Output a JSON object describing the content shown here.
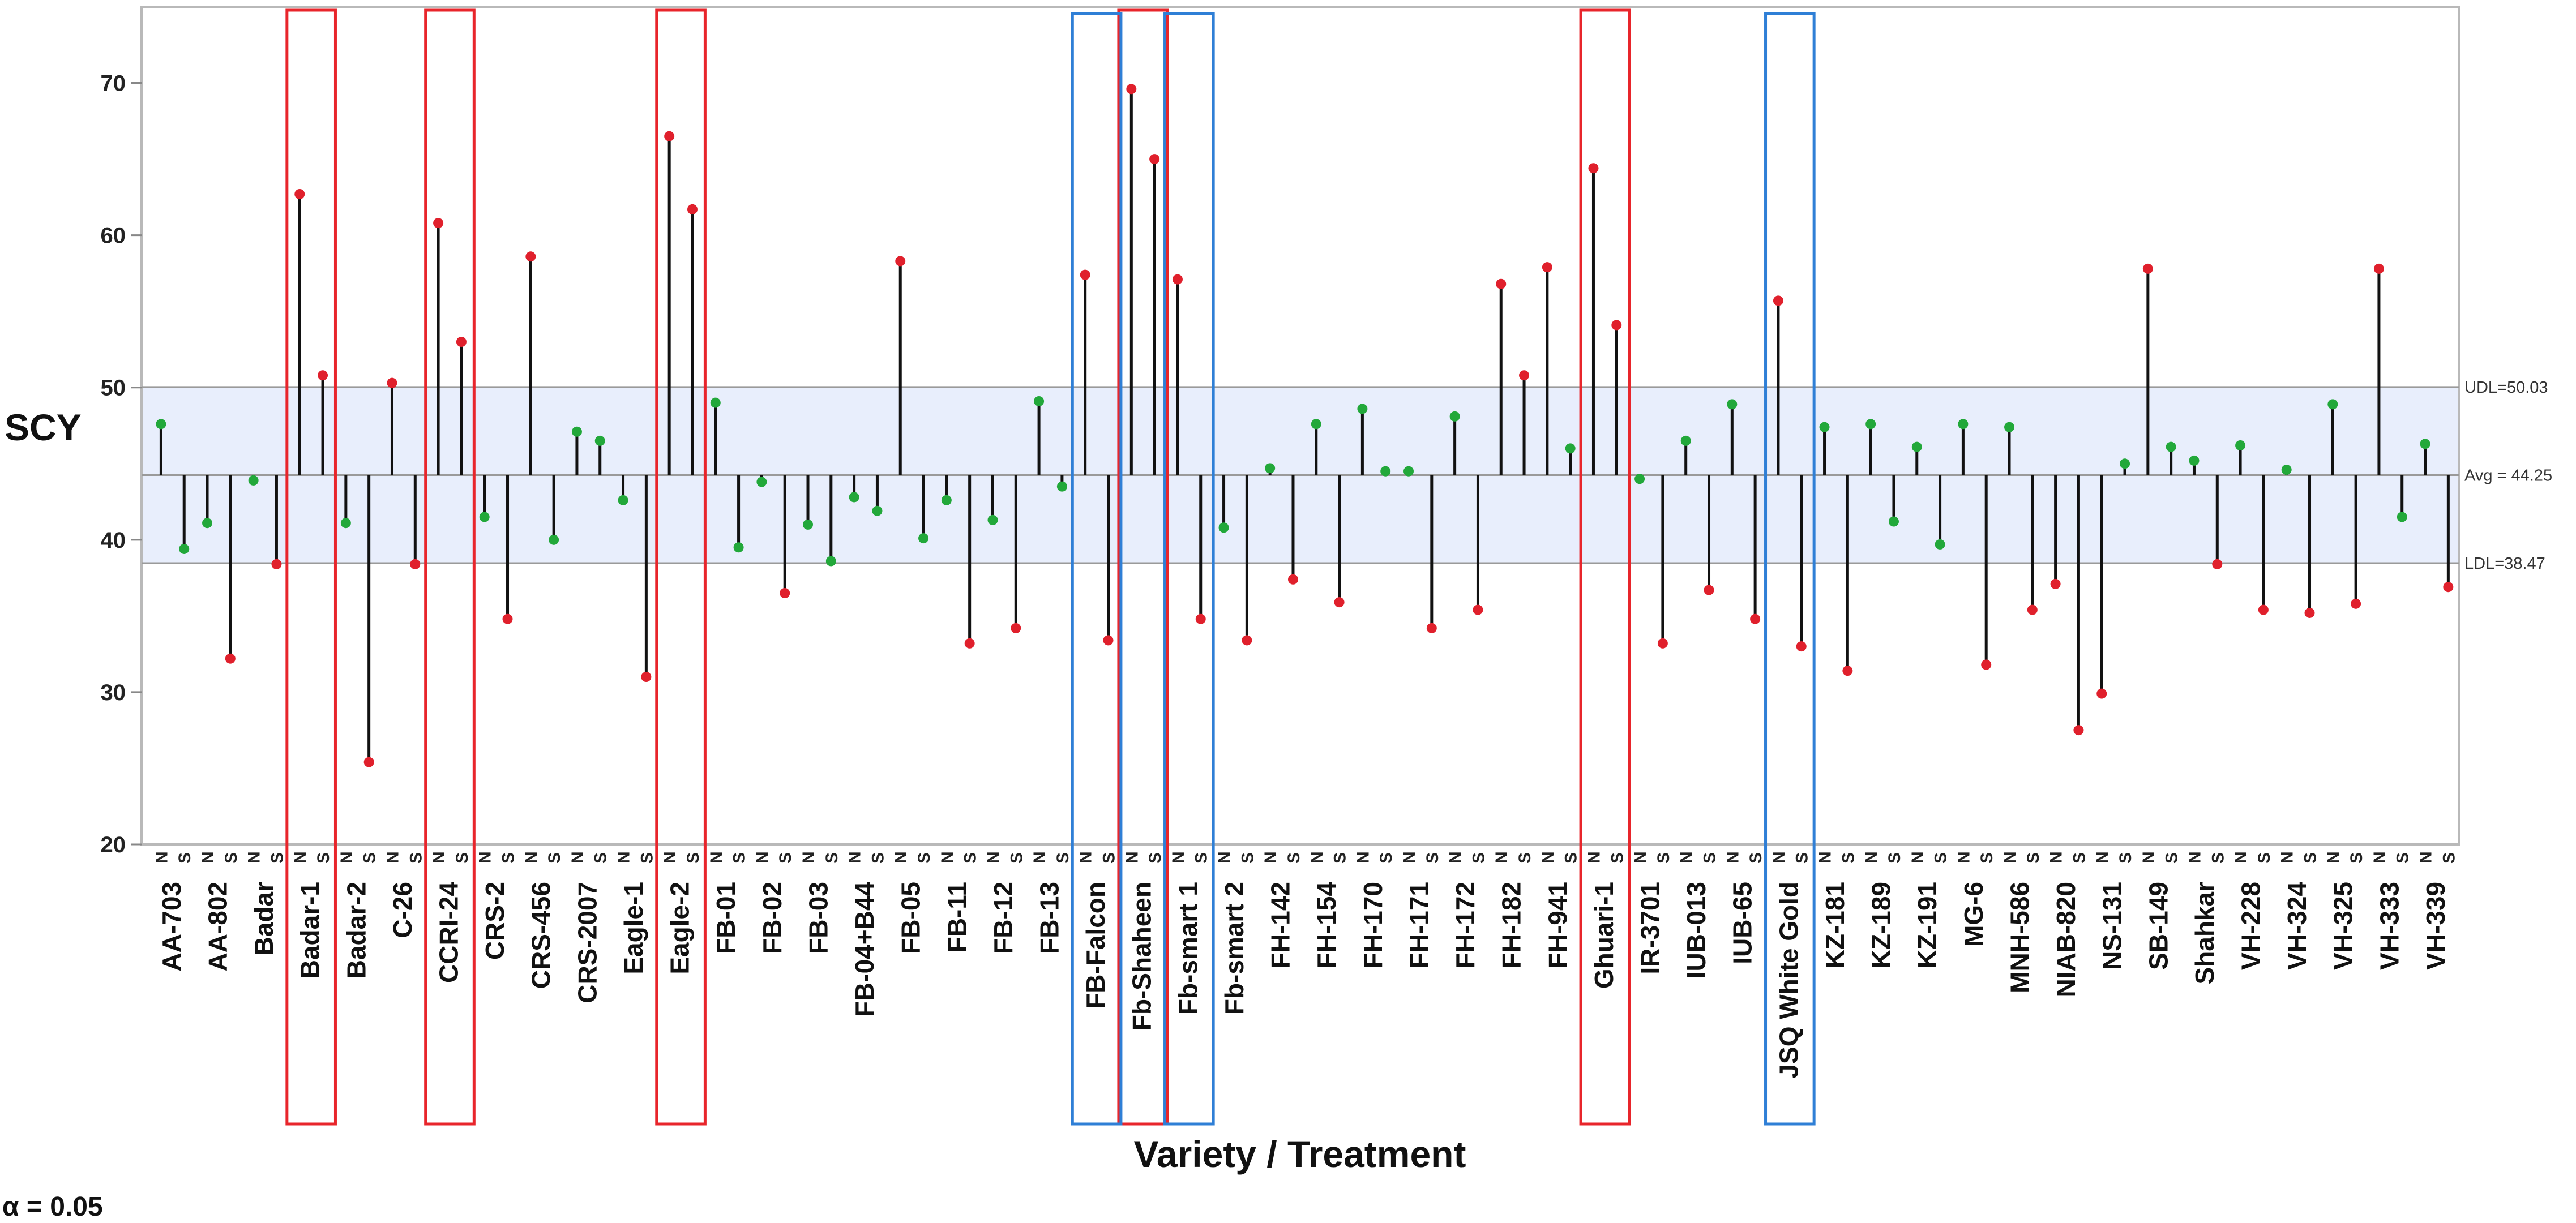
{
  "chart_data": {
    "type": "scatter",
    "title": "",
    "ylabel": "SCY",
    "xlabel": "Variety / Treatment",
    "ylim": [
      20,
      75
    ],
    "yticks": [
      20,
      30,
      40,
      50,
      60,
      70
    ],
    "treatments": [
      "N",
      "S"
    ],
    "reference_lines": {
      "udl": {
        "label": "UDL=50.03",
        "value": 50.03
      },
      "avg": {
        "label": "Avg = 44.25",
        "value": 44.25
      },
      "ldl": {
        "label": "LDL=38.47",
        "value": 38.47
      }
    },
    "alpha_label": "α = 0.05",
    "varieties": [
      {
        "name": "AA-703",
        "N": 47.6,
        "S": 39.4
      },
      {
        "name": "AA-802",
        "N": 41.1,
        "S": 32.2
      },
      {
        "name": "Badar",
        "N": 43.9,
        "S": 38.4
      },
      {
        "name": "Badar-1",
        "N": 62.7,
        "S": 50.8
      },
      {
        "name": "Badar-2",
        "N": 41.1,
        "S": 25.4
      },
      {
        "name": "C-26",
        "N": 50.3,
        "S": 38.4
      },
      {
        "name": "CCRI-24",
        "N": 60.8,
        "S": 53.0
      },
      {
        "name": "CRS-2",
        "N": 41.5,
        "S": 34.8
      },
      {
        "name": "CRS-456",
        "N": 58.6,
        "S": 40.0
      },
      {
        "name": "CRS-2007",
        "N": 47.1,
        "S": 46.5
      },
      {
        "name": "Eagle-1",
        "N": 42.6,
        "S": 31.0
      },
      {
        "name": "Eagle-2",
        "N": 66.5,
        "S": 61.7
      },
      {
        "name": "FB-01",
        "N": 49.0,
        "S": 39.5
      },
      {
        "name": "FB-02",
        "N": 43.8,
        "S": 36.5
      },
      {
        "name": "FB-03",
        "N": 41.0,
        "S": 38.6
      },
      {
        "name": "FB-04+B44",
        "N": 42.8,
        "S": 41.9
      },
      {
        "name": "FB-05",
        "N": 58.3,
        "S": 40.1
      },
      {
        "name": "FB-11",
        "N": 42.6,
        "S": 33.2
      },
      {
        "name": "FB-12",
        "N": 41.3,
        "S": 34.2
      },
      {
        "name": "FB-13",
        "N": 49.1,
        "S": 43.5
      },
      {
        "name": "FB-Falcon",
        "N": 57.4,
        "S": 33.4
      },
      {
        "name": "Fb-Shaheen",
        "N": 69.6,
        "S": 65.0
      },
      {
        "name": "Fb-smart 1",
        "N": 57.1,
        "S": 34.8
      },
      {
        "name": "Fb-smart 2",
        "N": 40.8,
        "S": 33.4
      },
      {
        "name": "FH-142",
        "N": 44.7,
        "S": 37.4
      },
      {
        "name": "FH-154",
        "N": 47.6,
        "S": 35.9
      },
      {
        "name": "FH-170",
        "N": 48.6,
        "S": 44.5
      },
      {
        "name": "FH-171",
        "N": 44.5,
        "S": 34.2
      },
      {
        "name": "FH-172",
        "N": 48.1,
        "S": 35.4
      },
      {
        "name": "FH-182",
        "N": 56.8,
        "S": 50.8
      },
      {
        "name": "FH-941",
        "N": 57.9,
        "S": 46.0
      },
      {
        "name": "Ghuari-1",
        "N": 64.4,
        "S": 54.1
      },
      {
        "name": "IR-3701",
        "N": 44.0,
        "S": 33.2
      },
      {
        "name": "IUB-013",
        "N": 46.5,
        "S": 36.7
      },
      {
        "name": "IUB-65",
        "N": 48.9,
        "S": 34.8
      },
      {
        "name": "JSQ White Gold",
        "N": 55.7,
        "S": 33.0
      },
      {
        "name": "KZ-181",
        "N": 47.4,
        "S": 31.4
      },
      {
        "name": "KZ-189",
        "N": 47.6,
        "S": 41.2
      },
      {
        "name": "KZ-191",
        "N": 46.1,
        "S": 39.7
      },
      {
        "name": "MG-6",
        "N": 47.6,
        "S": 31.8
      },
      {
        "name": "MNH-586",
        "N": 47.4,
        "S": 35.4
      },
      {
        "name": "NIAB-820",
        "N": 37.1,
        "S": 27.5
      },
      {
        "name": "NS-131",
        "N": 29.9,
        "S": 45.0
      },
      {
        "name": "SB-149",
        "N": 57.8,
        "S": 46.1
      },
      {
        "name": "Shahkar",
        "N": 45.2,
        "S": 38.4
      },
      {
        "name": "VH-228",
        "N": 46.2,
        "S": 35.4
      },
      {
        "name": "VH-324",
        "N": 44.6,
        "S": 35.2
      },
      {
        "name": "VH-325",
        "N": 48.9,
        "S": 35.8
      },
      {
        "name": "VH-333",
        "N": 57.8,
        "S": 41.5
      },
      {
        "name": "VH-339",
        "N": 46.3,
        "S": 36.9
      }
    ],
    "highlights": {
      "red": [
        "Badar-1",
        "CCRI-24",
        "Eagle-2",
        "Fb-Shaheen",
        "Ghuari-1"
      ],
      "blue": [
        "FB-Falcon",
        "Fb-smart 1",
        "JSQ White Gold"
      ]
    },
    "colors": {
      "above_or_below_limit": "#e0202c",
      "within_limit": "#22a83a",
      "band_fill": "#e8eefc",
      "highlight_red": "#e8252b",
      "highlight_blue": "#2f7fd6",
      "needle": "#111111"
    }
  }
}
